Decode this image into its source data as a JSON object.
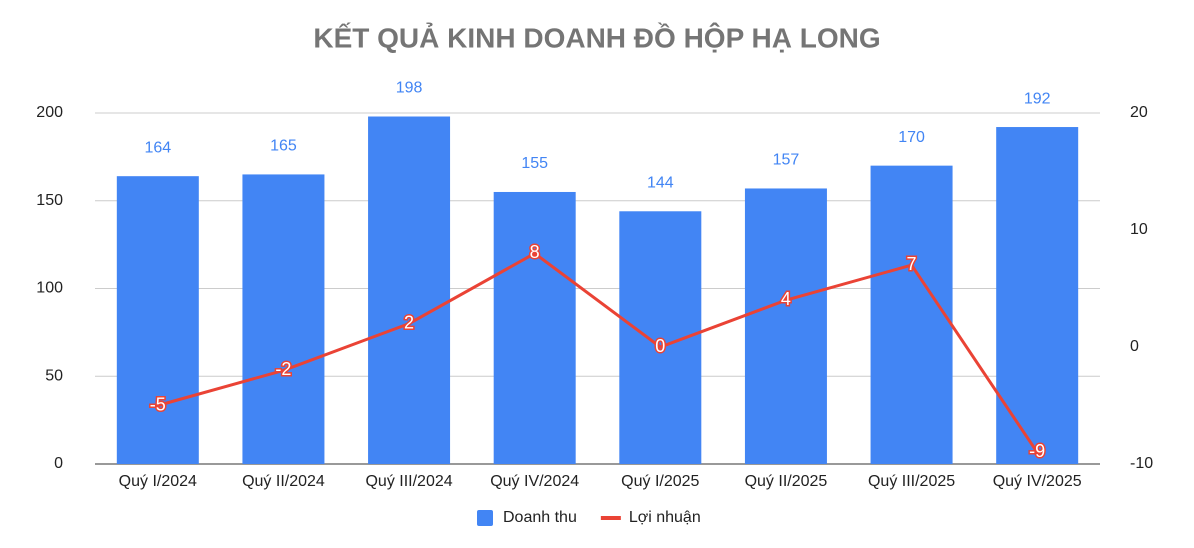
{
  "chart_data": {
    "type": "bar",
    "title": "KẾT QUẢ KINH DOANH ĐỒ HỘP HẠ LONG",
    "categories": [
      "Quý I/2024",
      "Quý II/2024",
      "Quý III/2024",
      "Quý IV/2024",
      "Quý I/2025",
      "Quý II/2025",
      "Quý III/2025",
      "Quý IV/2025"
    ],
    "series": [
      {
        "name": "Doanh thu",
        "type": "bar",
        "color": "#4285f4",
        "values": [
          164,
          165,
          198,
          155,
          144,
          157,
          170,
          192
        ]
      },
      {
        "name": "Lợi nhuận",
        "type": "line",
        "axis": "y2",
        "color": "#ea4335",
        "values": [
          -5,
          -2,
          2,
          8,
          0,
          4,
          7,
          -9
        ]
      }
    ],
    "ylim": [
      0,
      200
    ],
    "yticks": [
      0,
      50,
      100,
      150,
      200
    ],
    "y2lim": [
      -10,
      20
    ],
    "y2ticks": [
      -10,
      0,
      10,
      20
    ],
    "grid": true,
    "legend": "bottom"
  }
}
